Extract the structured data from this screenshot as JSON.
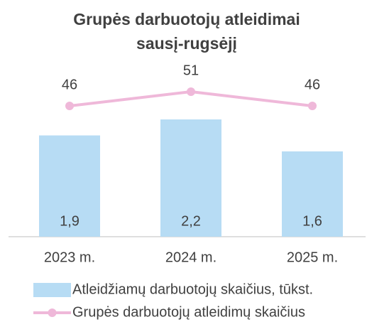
{
  "chart_data": {
    "type": "bar",
    "title": [
      "Grupės darbuotojų atleidimai",
      "sausį-rugsėjį"
    ],
    "categories": [
      "2023 m.",
      "2024 m.",
      "2025 m."
    ],
    "series": [
      {
        "name": "Atleidžiamų darbuotojų skaičius, tūkst.",
        "type": "bar",
        "color": "#b7dcf4",
        "values": [
          1.9,
          2.2,
          1.6
        ],
        "value_labels": [
          "1,9",
          "2,2",
          "1,6"
        ]
      },
      {
        "name": "Grupės darbuotojų atleidimų skaičius",
        "type": "line",
        "axis": "y2",
        "color": "#efb8d9",
        "values": [
          46,
          51,
          46
        ]
      }
    ],
    "ylim": [
      0,
      4
    ],
    "y2lim": [
      0,
      75
    ],
    "legend": "bottom"
  }
}
